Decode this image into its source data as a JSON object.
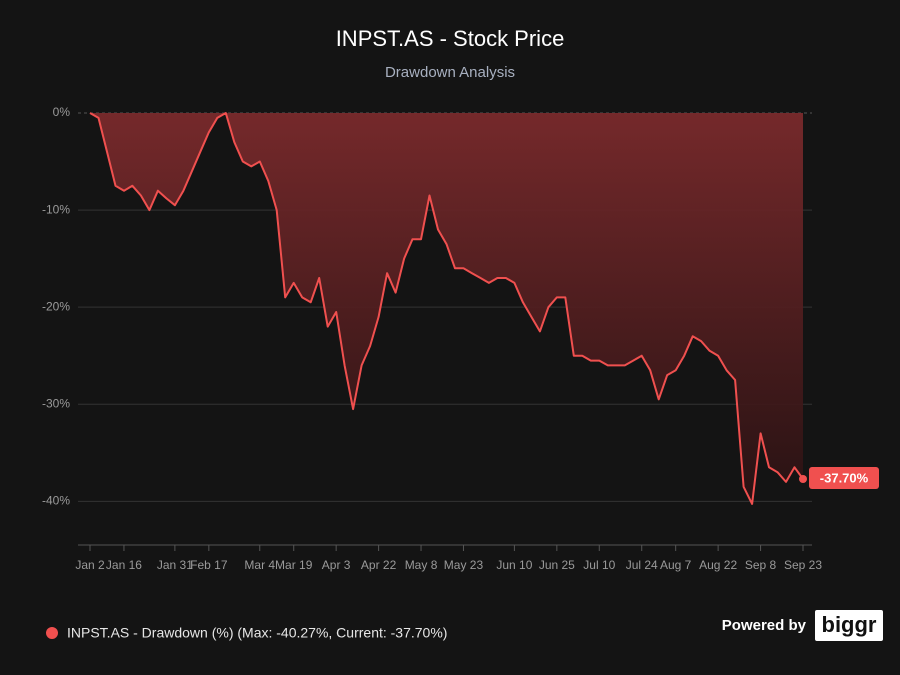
{
  "chart_data": {
    "type": "line",
    "title": "INPST.AS - Stock Price",
    "subtitle": "Drawdown Analysis",
    "area": true,
    "categories": [
      "Jan 2",
      null,
      null,
      null,
      "Jan 16",
      null,
      null,
      null,
      null,
      null,
      "Jan 31",
      null,
      null,
      null,
      "Feb 17",
      null,
      null,
      null,
      null,
      null,
      "Mar 4",
      null,
      null,
      null,
      "Mar 19",
      null,
      null,
      null,
      null,
      "Apr 3",
      null,
      null,
      null,
      null,
      "Apr 22",
      null,
      null,
      null,
      null,
      "May 8",
      null,
      null,
      null,
      null,
      "May 23",
      null,
      null,
      null,
      null,
      null,
      "Jun 10",
      null,
      null,
      null,
      null,
      "Jun 25",
      null,
      null,
      null,
      null,
      "Jul 10",
      null,
      null,
      null,
      null,
      "Jul 24",
      null,
      null,
      null,
      "Aug 7",
      null,
      null,
      null,
      null,
      "Aug 22",
      null,
      null,
      null,
      null,
      "Sep 8",
      null,
      null,
      null,
      null,
      "Sep 23"
    ],
    "series": [
      {
        "name": "INPST.AS - Drawdown (%) (Max: -40.27%, Current: -37.70%)",
        "color": "#f0504f",
        "values": [
          0,
          -0.5,
          -4,
          -7.5,
          -8,
          -7.5,
          -8.5,
          -10,
          -8,
          -8.8,
          -9.5,
          -8,
          -6,
          -4,
          -2,
          -0.5,
          0,
          -3,
          -5,
          -5.5,
          -5,
          -7,
          -10,
          -19,
          -17.5,
          -19,
          -19.5,
          -17,
          -22,
          -20.5,
          -26,
          -30.5,
          -26,
          -24,
          -21,
          -16.5,
          -18.5,
          -15,
          -13,
          -13,
          -8.5,
          -12,
          -13.5,
          -16,
          -16,
          -16.5,
          -17,
          -17.5,
          -17,
          -17,
          -17.5,
          -19.5,
          -21,
          -22.5,
          -20,
          -19,
          -19,
          -25,
          -25,
          -25.5,
          -25.5,
          -26,
          -26,
          -26,
          -25.5,
          -25,
          -26.5,
          -29.5,
          -27,
          -26.5,
          -25,
          -23,
          -23.5,
          -24.5,
          -25,
          -26.5,
          -27.5,
          -38.5,
          -40.27,
          -33,
          -36.5,
          -37,
          -38,
          -36.5,
          -37.7
        ],
        "value_labels": [
          null,
          null,
          null,
          null,
          null,
          null,
          null,
          null,
          null,
          null,
          null,
          null,
          null,
          null,
          null,
          null,
          null,
          null,
          null,
          null,
          null,
          null,
          null,
          null,
          null,
          null,
          null,
          null,
          null,
          null,
          null,
          null,
          null,
          null,
          null,
          null,
          null,
          null,
          null,
          null,
          null,
          null,
          null,
          null,
          null,
          null,
          null,
          null,
          null,
          null,
          null,
          null,
          null,
          null,
          null,
          null,
          null,
          null,
          null,
          null,
          null,
          null,
          null,
          null,
          null,
          null,
          null,
          null,
          null,
          null,
          null,
          null,
          null,
          null,
          null,
          null,
          null,
          null,
          null,
          null,
          null,
          null,
          null,
          null,
          "-37.70%"
        ]
      }
    ],
    "ylim": [
      -44.5,
      0
    ],
    "yticks": [
      {
        "value": 0,
        "label": "0%"
      },
      {
        "value": -10,
        "label": "-10%"
      },
      {
        "value": -20,
        "label": "-20%"
      },
      {
        "value": -30,
        "label": "-30%"
      },
      {
        "value": -40,
        "label": "-40%"
      }
    ],
    "grid": true,
    "powered_by": "Powered by",
    "brand": "biggr"
  }
}
